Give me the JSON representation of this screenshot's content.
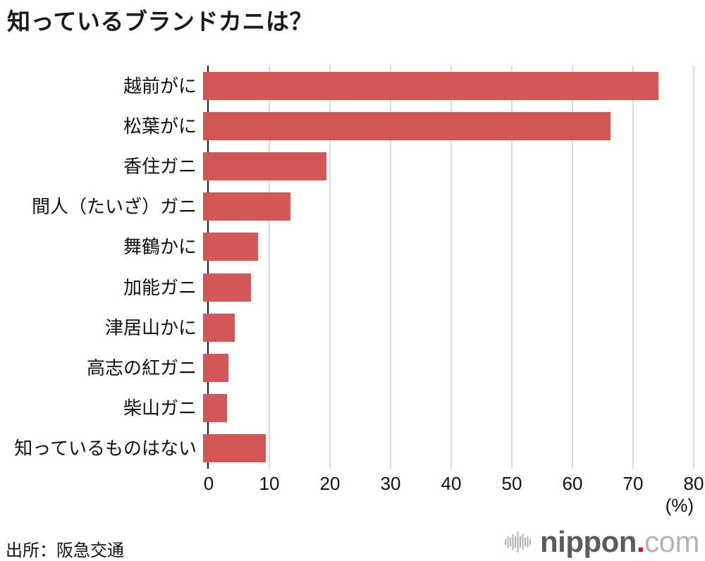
{
  "title": "知っているブランドカニは？",
  "source": "出所：阪急交通",
  "colors": {
    "bar": "#d45757",
    "grid": "#d9d9d9",
    "axis": "#1a1a1a",
    "logo_nippon": "#5c5a5a",
    "logo_dot": "#e60012",
    "logo_com": "#b3b3b3",
    "logo_icon": "#b0b0b0"
  },
  "logo": {
    "name": "nippon",
    "dot": ".",
    "tld": "com"
  },
  "chart_data": {
    "type": "bar",
    "orientation": "horizontal",
    "title": "知っているブランドカニは？",
    "categories": [
      "越前がに",
      "松葉がに",
      "香住ガニ",
      "間人（たいざ）ガニ",
      "舞鶴かに",
      "加能ガニ",
      "津居山かに",
      "高志の紅ガニ",
      "柴山ガニ",
      "知っているものはない"
    ],
    "values": [
      75.1,
      67.2,
      20.4,
      14.4,
      9.1,
      7.9,
      5.2,
      4.2,
      3.9,
      10.3
    ],
    "xlabel": "(%)",
    "xlim": [
      0,
      80
    ],
    "xticks": [
      0,
      10,
      20,
      30,
      40,
      50,
      60,
      70,
      80
    ],
    "grid": true,
    "legend": false
  }
}
